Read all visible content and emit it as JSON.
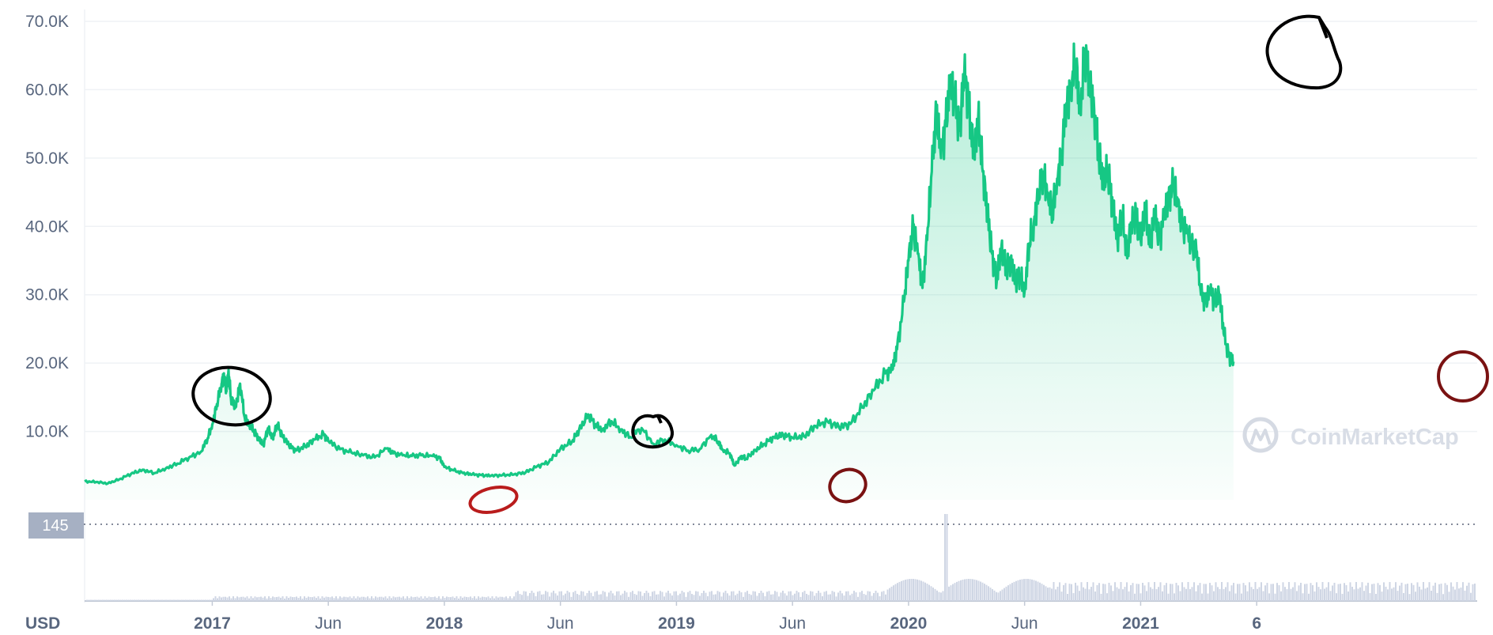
{
  "currency_label": "USD",
  "watermark": "CoinMarketCap",
  "current_price_badge": "145",
  "colors": {
    "line": "#16c784",
    "area_top": "#16c784",
    "grid": "#eff2f5",
    "axis_text": "#58667e",
    "volume": "#cfd6e4",
    "badge_bg": "#a6b0c3",
    "circle_black": "#000000",
    "circle_red": "#b91c1c",
    "circle_darkred": "#7a1212"
  },
  "annotations": [
    {
      "kind": "circle",
      "color": "black",
      "label": "peak-2017"
    },
    {
      "kind": "circle",
      "color": "red",
      "label": "low-2017"
    },
    {
      "kind": "circle",
      "color": "black",
      "label": "peak-2018"
    },
    {
      "kind": "circle",
      "color": "darkred",
      "label": "low-2019"
    },
    {
      "kind": "circle",
      "color": "black",
      "label": "peak-2020"
    },
    {
      "kind": "circle",
      "color": "darkred",
      "label": "current"
    }
  ],
  "chart_data": {
    "type": "area",
    "title": "",
    "xlabel": "",
    "ylabel": "",
    "ylim": [
      0,
      70000
    ],
    "yticks": [
      10000,
      20000,
      30000,
      40000,
      50000,
      60000,
      70000
    ],
    "ytick_labels": [
      "10.0K",
      "20.0K",
      "30.0K",
      "40.0K",
      "50.0K",
      "60.0K",
      "70.0K"
    ],
    "xlim": [
      -0.55,
      5.45
    ],
    "xticks": [
      {
        "x": 0,
        "label": "2017",
        "bold": true
      },
      {
        "x": 0.5,
        "label": "Jun",
        "bold": false
      },
      {
        "x": 1,
        "label": "2018",
        "bold": true
      },
      {
        "x": 1.5,
        "label": "Jun",
        "bold": false
      },
      {
        "x": 2,
        "label": "2019",
        "bold": true
      },
      {
        "x": 2.5,
        "label": "Jun",
        "bold": false
      },
      {
        "x": 3,
        "label": "2020",
        "bold": true
      },
      {
        "x": 3.5,
        "label": "Jun",
        "bold": false
      },
      {
        "x": 4,
        "label": "2021",
        "bold": true
      },
      {
        "x": 4.5,
        "label": "6",
        "bold": true
      }
    ],
    "grid": true,
    "series": [
      {
        "values": [
          [
            -0.55,
            2700
          ],
          [
            -0.5,
            2600
          ],
          [
            -0.45,
            2400
          ],
          [
            -0.4,
            3000
          ],
          [
            -0.35,
            3800
          ],
          [
            -0.3,
            4400
          ],
          [
            -0.25,
            3900
          ],
          [
            -0.2,
            4600
          ],
          [
            -0.15,
            5300
          ],
          [
            -0.1,
            6200
          ],
          [
            -0.05,
            7000
          ],
          [
            -0.02,
            9000
          ],
          [
            0.0,
            11000
          ],
          [
            0.02,
            14000
          ],
          [
            0.04,
            17000
          ],
          [
            0.05,
            18500
          ],
          [
            0.06,
            16000
          ],
          [
            0.07,
            19000
          ],
          [
            0.08,
            15000
          ],
          [
            0.1,
            13500
          ],
          [
            0.12,
            17000
          ],
          [
            0.14,
            12000
          ],
          [
            0.16,
            11000
          ],
          [
            0.18,
            10000
          ],
          [
            0.2,
            9000
          ],
          [
            0.22,
            8000
          ],
          [
            0.24,
            10500
          ],
          [
            0.26,
            9000
          ],
          [
            0.28,
            11000
          ],
          [
            0.3,
            9500
          ],
          [
            0.33,
            8000
          ],
          [
            0.36,
            7200
          ],
          [
            0.4,
            7800
          ],
          [
            0.44,
            8800
          ],
          [
            0.48,
            9600
          ],
          [
            0.5,
            8600
          ],
          [
            0.55,
            7400
          ],
          [
            0.6,
            6900
          ],
          [
            0.65,
            6500
          ],
          [
            0.7,
            6200
          ],
          [
            0.75,
            7500
          ],
          [
            0.78,
            6800
          ],
          [
            0.82,
            6500
          ],
          [
            0.86,
            6400
          ],
          [
            0.9,
            6500
          ],
          [
            0.95,
            6400
          ],
          [
            0.98,
            6100
          ],
          [
            1.0,
            4800
          ],
          [
            1.04,
            4300
          ],
          [
            1.08,
            3900
          ],
          [
            1.12,
            3700
          ],
          [
            1.16,
            3600
          ],
          [
            1.2,
            3500
          ],
          [
            1.25,
            3600
          ],
          [
            1.3,
            3700
          ],
          [
            1.35,
            4000
          ],
          [
            1.4,
            4900
          ],
          [
            1.45,
            5500
          ],
          [
            1.5,
            7500
          ],
          [
            1.55,
            8500
          ],
          [
            1.58,
            10200
          ],
          [
            1.62,
            12500
          ],
          [
            1.65,
            11000
          ],
          [
            1.68,
            10200
          ],
          [
            1.72,
            11500
          ],
          [
            1.76,
            10300
          ],
          [
            1.8,
            9200
          ],
          [
            1.85,
            10500
          ],
          [
            1.9,
            8200
          ],
          [
            1.95,
            8800
          ],
          [
            2.0,
            8000
          ],
          [
            2.05,
            7200
          ],
          [
            2.1,
            7400
          ],
          [
            2.15,
            9500
          ],
          [
            2.18,
            8500
          ],
          [
            2.2,
            7300
          ],
          [
            2.23,
            6800
          ],
          [
            2.25,
            5000
          ],
          [
            2.28,
            6400
          ],
          [
            2.3,
            6000
          ],
          [
            2.34,
            7300
          ],
          [
            2.38,
            8200
          ],
          [
            2.42,
            9200
          ],
          [
            2.46,
            9500
          ],
          [
            2.5,
            9100
          ],
          [
            2.55,
            9300
          ],
          [
            2.6,
            10800
          ],
          [
            2.65,
            11500
          ],
          [
            2.7,
            10600
          ],
          [
            2.75,
            11100
          ],
          [
            2.8,
            13500
          ],
          [
            2.85,
            16000
          ],
          [
            2.9,
            18500
          ],
          [
            2.93,
            19000
          ],
          [
            2.95,
            22000
          ],
          [
            2.98,
            29000
          ],
          [
            3.0,
            35000
          ],
          [
            3.02,
            40000
          ],
          [
            3.04,
            36000
          ],
          [
            3.06,
            31000
          ],
          [
            3.08,
            38000
          ],
          [
            3.1,
            48000
          ],
          [
            3.12,
            57000
          ],
          [
            3.14,
            50000
          ],
          [
            3.16,
            55000
          ],
          [
            3.18,
            61000
          ],
          [
            3.2,
            58000
          ],
          [
            3.22,
            54000
          ],
          [
            3.24,
            62500
          ],
          [
            3.26,
            58000
          ],
          [
            3.28,
            50000
          ],
          [
            3.3,
            56000
          ],
          [
            3.32,
            48000
          ],
          [
            3.34,
            42000
          ],
          [
            3.36,
            36000
          ],
          [
            3.38,
            32000
          ],
          [
            3.4,
            37000
          ],
          [
            3.42,
            33500
          ],
          [
            3.44,
            35000
          ],
          [
            3.46,
            32000
          ],
          [
            3.48,
            33000
          ],
          [
            3.5,
            30500
          ],
          [
            3.52,
            37500
          ],
          [
            3.54,
            40500
          ],
          [
            3.56,
            45000
          ],
          [
            3.58,
            48000
          ],
          [
            3.6,
            45000
          ],
          [
            3.62,
            42000
          ],
          [
            3.64,
            47000
          ],
          [
            3.66,
            51000
          ],
          [
            3.68,
            58000
          ],
          [
            3.7,
            61000
          ],
          [
            3.72,
            64000
          ],
          [
            3.74,
            57000
          ],
          [
            3.76,
            66000
          ],
          [
            3.78,
            61000
          ],
          [
            3.8,
            57000
          ],
          [
            3.82,
            50000
          ],
          [
            3.84,
            47000
          ],
          [
            3.86,
            48000
          ],
          [
            3.88,
            43000
          ],
          [
            3.9,
            38000
          ],
          [
            3.92,
            42000
          ],
          [
            3.94,
            36000
          ],
          [
            3.96,
            40000
          ],
          [
            3.98,
            42000
          ],
          [
            4.0,
            38000
          ],
          [
            4.02,
            43000
          ],
          [
            4.04,
            37000
          ],
          [
            4.06,
            42000
          ],
          [
            4.08,
            38000
          ],
          [
            4.1,
            41000
          ],
          [
            4.12,
            44000
          ],
          [
            4.14,
            46000
          ],
          [
            4.16,
            43000
          ],
          [
            4.18,
            40000
          ],
          [
            4.2,
            39000
          ],
          [
            4.22,
            37000
          ],
          [
            4.24,
            36500
          ],
          [
            4.26,
            30000
          ],
          [
            4.28,
            29000
          ],
          [
            4.3,
            30500
          ],
          [
            4.32,
            29000
          ],
          [
            4.34,
            30000
          ],
          [
            4.36,
            24000
          ],
          [
            4.38,
            21000
          ],
          [
            4.4,
            20200
          ]
        ]
      }
    ],
    "volume_spike_x": 3.16
  }
}
